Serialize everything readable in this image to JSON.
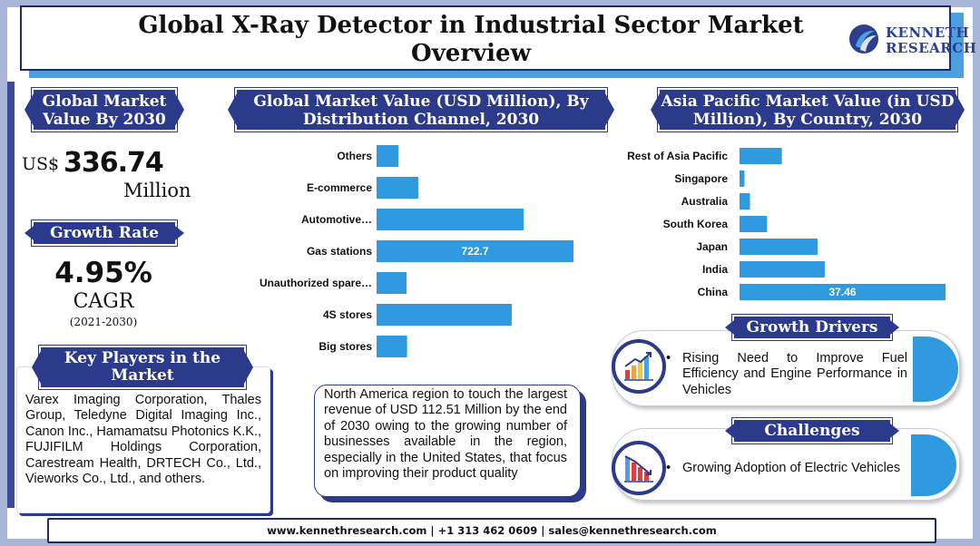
{
  "title": "Global X-Ray Detector in Industrial Sector Market Overview",
  "logo": {
    "line1": "KENNETH",
    "line2": "RESEARCH"
  },
  "market_value": {
    "heading": "Global Market Value By 2030",
    "prefix": "US$",
    "value": "336.74",
    "unit": "Million"
  },
  "growth": {
    "heading": "Growth Rate",
    "value": "4.95%",
    "label": "CAGR",
    "period": "(2021-2030)"
  },
  "key_players": {
    "heading": "Key Players in the Market",
    "text": "Varex Imaging Corporation, Thales Group, Teledyne Digital Imaging Inc., Canon Inc., Hamamatsu Photonics K.K., FUJIFILM Holdings Corporation, Carestream Health, DRTECH Co., Ltd., Vieworks Co., Ltd., and others."
  },
  "note": "North America region to touch the largest revenue of USD 112.51 Million by the end of 2030 owing to the growing number of businesses available in the region, especially in the United States, that focus on improving their product quality",
  "growth_drivers": {
    "heading": "Growth Drivers",
    "item": "Rising Need to Improve Fuel Efficiency and Engine Performance in Vehicles",
    "icon": "rising-bar-chart-icon"
  },
  "challenges": {
    "heading": "Challenges",
    "item": "Growing Adoption of Electric Vehicles",
    "icon": "falling-bar-chart-icon"
  },
  "footer": "www.kennethresearch.com | +1 313 462 0609 | sales@kennethresearch.com",
  "colors": {
    "navy": "#2c3a8c",
    "bar": "#2f9ae0",
    "frame": "#a9b6d8",
    "accent": "#4ca0e0"
  },
  "chart_data": [
    {
      "type": "bar",
      "orientation": "horizontal",
      "title": "Global Market Value (USD Million), By Distribution Channel, 2030",
      "categories": [
        "Others",
        "E-commerce",
        "Automotive…",
        "Gas stations",
        "Unauthorized spare…",
        "4S stores",
        "Big stores"
      ],
      "values": [
        80,
        153,
        540,
        722.7,
        110,
        496,
        112
      ],
      "data_labels": {
        "Gas stations": "722.7"
      },
      "xlim": [
        0,
        722.7
      ],
      "grid": false,
      "axes_visible": false
    },
    {
      "type": "bar",
      "orientation": "horizontal",
      "title": "Asia Pacific Market Value (in USD Million), By Country, 2030",
      "categories": [
        "Rest of Asia Pacific",
        "Singapore",
        "Australia",
        "South Korea",
        "Japan",
        "India",
        "China"
      ],
      "values": [
        7.7,
        0.9,
        1.9,
        5.0,
        14.2,
        15.5,
        37.46
      ],
      "data_labels": {
        "China": "37.46"
      },
      "xlim": [
        0,
        37.46
      ],
      "grid": false,
      "axes_visible": false
    }
  ]
}
